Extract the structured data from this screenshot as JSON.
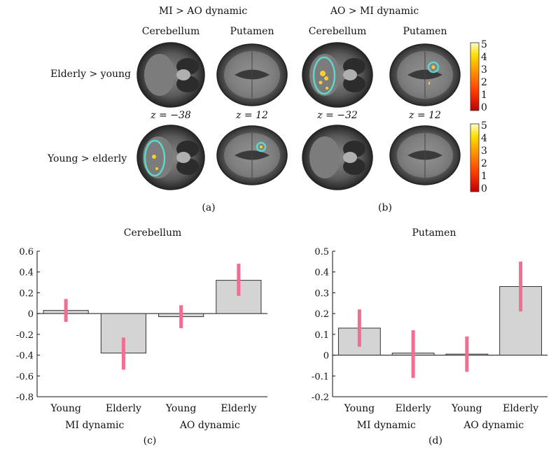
{
  "panel_a": {
    "title": "MI > AO dynamic",
    "col1": "Cerebellum",
    "col2": "Putamen",
    "z1": "z = −38",
    "z2": "z = 12",
    "caption": "(a)"
  },
  "panel_b": {
    "title": "AO > MI dynamic",
    "col1": "Cerebellum",
    "col2": "Putamen",
    "z1": "z = −32",
    "z2": "z = 12",
    "caption": "(b)"
  },
  "rows": {
    "row1": "Elderly > young",
    "row2": "Young > elderly"
  },
  "colorbar": {
    "ticks": [
      "5",
      "4",
      "3",
      "2",
      "1",
      "0"
    ],
    "colors": [
      "#c00000",
      "#ff4000",
      "#ff9a00",
      "#ffe000",
      "#fffbd0"
    ]
  },
  "colors": {
    "bar_fill": "#d4d4d4",
    "error_bar": "#ef6f93",
    "roi_circle": "#5fd6c7",
    "activation": "#f2d233"
  },
  "chart_data": [
    {
      "type": "bar",
      "title": "Cerebellum",
      "caption": "(c)",
      "categories": [
        "Young",
        "Elderly",
        "Young",
        "Elderly"
      ],
      "groups": [
        "MI dynamic",
        "AO dynamic"
      ],
      "values": [
        0.03,
        -0.38,
        -0.03,
        0.32
      ],
      "error_low": [
        -0.08,
        -0.54,
        -0.14,
        0.17
      ],
      "error_high": [
        0.14,
        -0.23,
        0.08,
        0.48
      ],
      "ylim": [
        -0.8,
        0.6
      ],
      "yticks": [
        "0.6",
        "0.4",
        "0.2",
        "0",
        "-0.2",
        "-0.4",
        "-0.6",
        "-0.8"
      ],
      "ytick_values": [
        0.6,
        0.4,
        0.2,
        0,
        -0.2,
        -0.4,
        -0.6,
        -0.8
      ],
      "xlabel": "",
      "ylabel": ""
    },
    {
      "type": "bar",
      "title": "Putamen",
      "caption": "(d)",
      "categories": [
        "Young",
        "Elderly",
        "Young",
        "Elderly"
      ],
      "groups": [
        "MI dynamic",
        "AO dynamic"
      ],
      "values": [
        0.13,
        0.01,
        0.005,
        0.33
      ],
      "error_low": [
        0.04,
        -0.11,
        -0.08,
        0.21
      ],
      "error_high": [
        0.22,
        0.12,
        0.09,
        0.45
      ],
      "ylim": [
        -0.2,
        0.5
      ],
      "yticks": [
        "0.5",
        "0.4",
        "0.3",
        "0.2",
        "0.1",
        "0",
        "-0.1",
        "-0.2"
      ],
      "ytick_values": [
        0.5,
        0.4,
        0.3,
        0.2,
        0.1,
        0,
        -0.1,
        -0.2
      ],
      "xlabel": "",
      "ylabel": ""
    }
  ]
}
